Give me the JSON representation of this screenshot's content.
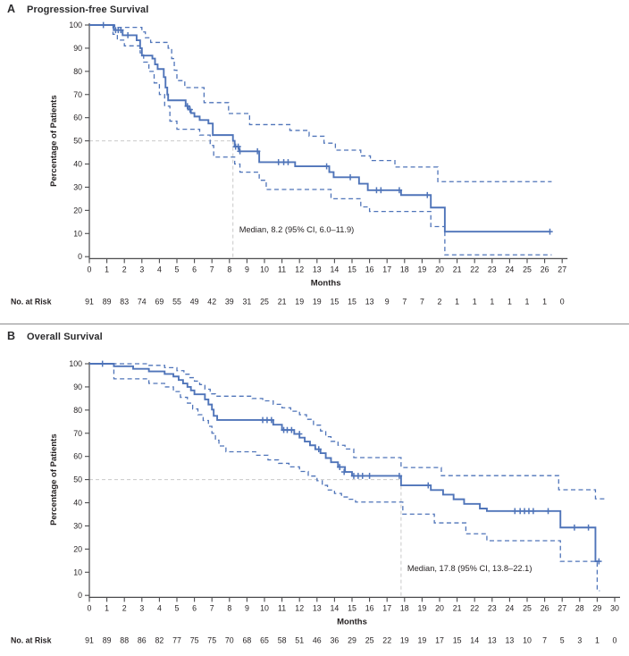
{
  "figure": {
    "panels": [
      {
        "panel_label": "A",
        "title": "Progression-free Survival",
        "y_axis_label": "Percentage of Patients",
        "x_axis_label": "Months",
        "median_annotation": "Median, 8.2 (95% CI, 6.0–11.9)",
        "no_at_risk_label": "No. at Risk"
      },
      {
        "panel_label": "B",
        "title": "Overall Survival",
        "y_axis_label": "Percentage of Patients",
        "x_axis_label": "Months",
        "median_annotation": "Median, 17.8 (95% CI, 13.8–22.1)",
        "no_at_risk_label": "No. at Risk"
      }
    ],
    "colors": {
      "curve": "#4f74b9",
      "reference_line": "#c9c9c9",
      "axis": "#4b4b4d",
      "text": "#231f20",
      "annotation_text": "#3a3a3c"
    }
  },
  "chart_data": [
    {
      "type": "line",
      "subtype": "kaplan-meier-step",
      "title": "Progression-free Survival",
      "xlabel": "Months",
      "ylabel": "Percentage of Patients",
      "xlim": [
        0,
        27
      ],
      "ylim": [
        0,
        100
      ],
      "xticks": [
        0,
        1,
        2,
        3,
        4,
        5,
        6,
        7,
        8,
        9,
        10,
        11,
        12,
        13,
        14,
        15,
        16,
        17,
        18,
        19,
        20,
        21,
        22,
        23,
        24,
        25,
        26,
        27
      ],
      "yticks": [
        0,
        10,
        20,
        30,
        40,
        50,
        60,
        70,
        80,
        90,
        100
      ],
      "median_months": 8.2,
      "ci_95": [
        6.0,
        11.9
      ],
      "reference_lines": {
        "horizontal_y": 50,
        "vertical_x": 8.2
      },
      "legend_position": "none",
      "grid": false,
      "series": [
        {
          "name": "PFS estimate",
          "style": "solid",
          "steps": [
            [
              0,
              100
            ],
            [
              1.4,
              97.8
            ],
            [
              1.9,
              95.6
            ],
            [
              2.7,
              93.4
            ],
            [
              2.9,
              90
            ],
            [
              3.0,
              86.8
            ],
            [
              3.6,
              85.5
            ],
            [
              3.75,
              83
            ],
            [
              3.9,
              81
            ],
            [
              4.25,
              77.5
            ],
            [
              4.35,
              73
            ],
            [
              4.45,
              70
            ],
            [
              4.5,
              67.5
            ],
            [
              5.5,
              65
            ],
            [
              5.65,
              63.5
            ],
            [
              5.8,
              62
            ],
            [
              6.0,
              60.5
            ],
            [
              6.3,
              59
            ],
            [
              6.8,
              57.5
            ],
            [
              7.05,
              52.5
            ],
            [
              8.2,
              50
            ],
            [
              8.3,
              47.5
            ],
            [
              8.55,
              45.5
            ],
            [
              9.7,
              40.8
            ],
            [
              11.75,
              39
            ],
            [
              13.7,
              36.5
            ],
            [
              13.95,
              34.3
            ],
            [
              15.4,
              31.5
            ],
            [
              15.9,
              28.7
            ],
            [
              17.8,
              26.6
            ],
            [
              19.5,
              21.2
            ],
            [
              20.3,
              10.8
            ],
            [
              26.35,
              10.8
            ]
          ]
        },
        {
          "name": "95% CI upper",
          "style": "dashed",
          "steps": [
            [
              0,
              100
            ],
            [
              1.45,
              99
            ],
            [
              3.0,
              97
            ],
            [
              3.2,
              94.5
            ],
            [
              3.5,
              92.5
            ],
            [
              4.5,
              90
            ],
            [
              4.7,
              85.5
            ],
            [
              4.85,
              80.5
            ],
            [
              5.0,
              76
            ],
            [
              5.45,
              73
            ],
            [
              6.55,
              66.5
            ],
            [
              7.95,
              61.8
            ],
            [
              9.15,
              57
            ],
            [
              11.45,
              54.5
            ],
            [
              12.55,
              52
            ],
            [
              13.4,
              49
            ],
            [
              14.05,
              46
            ],
            [
              15.5,
              43.5
            ],
            [
              16.05,
              41.5
            ],
            [
              17.45,
              38.7
            ],
            [
              19.9,
              32.4
            ],
            [
              26.4,
              32.4
            ]
          ]
        },
        {
          "name": "95% CI lower",
          "style": "dashed",
          "steps": [
            [
              0,
              100
            ],
            [
              1.35,
              96
            ],
            [
              1.6,
              93.5
            ],
            [
              2.0,
              91
            ],
            [
              2.9,
              88
            ],
            [
              3.1,
              84
            ],
            [
              3.4,
              80
            ],
            [
              3.7,
              75
            ],
            [
              4.0,
              70
            ],
            [
              4.3,
              65
            ],
            [
              4.6,
              58.5
            ],
            [
              5.0,
              55
            ],
            [
              6.3,
              52.5
            ],
            [
              6.9,
              48
            ],
            [
              7.1,
              43
            ],
            [
              8.3,
              40
            ],
            [
              8.6,
              36.5
            ],
            [
              9.7,
              33
            ],
            [
              10.1,
              29
            ],
            [
              13.8,
              25
            ],
            [
              15.5,
              21.5
            ],
            [
              16.0,
              19.5
            ],
            [
              19.5,
              13
            ],
            [
              20.3,
              0.8
            ],
            [
              26.4,
              0.8
            ]
          ]
        }
      ],
      "censor_marks": [
        [
          0.8,
          100
        ],
        [
          1.5,
          97.8
        ],
        [
          1.65,
          97.8
        ],
        [
          1.8,
          97.8
        ],
        [
          2.2,
          95.6
        ],
        [
          5.6,
          65
        ],
        [
          5.75,
          63.5
        ],
        [
          8.35,
          47.5
        ],
        [
          8.5,
          47.5
        ],
        [
          8.6,
          45.5
        ],
        [
          9.6,
          45.5
        ],
        [
          10.8,
          40.8
        ],
        [
          11.1,
          40.8
        ],
        [
          11.35,
          40.8
        ],
        [
          13.55,
          39
        ],
        [
          14.9,
          34.3
        ],
        [
          16.4,
          28.7
        ],
        [
          16.65,
          28.7
        ],
        [
          17.7,
          28.7
        ],
        [
          19.3,
          26.6
        ],
        [
          26.3,
          10.8
        ]
      ],
      "no_at_risk": [
        91,
        89,
        83,
        74,
        69,
        55,
        49,
        42,
        39,
        31,
        25,
        21,
        19,
        19,
        15,
        15,
        13,
        9,
        7,
        7,
        2,
        1,
        1,
        1,
        1,
        1,
        1,
        0
      ]
    },
    {
      "type": "line",
      "subtype": "kaplan-meier-step",
      "title": "Overall Survival",
      "xlabel": "Months",
      "ylabel": "Percentage of Patients",
      "xlim": [
        0,
        30
      ],
      "ylim": [
        0,
        100
      ],
      "xticks": [
        0,
        1,
        2,
        3,
        4,
        5,
        6,
        7,
        8,
        9,
        10,
        11,
        12,
        13,
        14,
        15,
        16,
        17,
        18,
        19,
        20,
        21,
        22,
        23,
        24,
        25,
        26,
        27,
        28,
        29,
        30
      ],
      "yticks": [
        0,
        10,
        20,
        30,
        40,
        50,
        60,
        70,
        80,
        90,
        100
      ],
      "median_months": 17.8,
      "ci_95": [
        13.8,
        22.1
      ],
      "reference_lines": {
        "horizontal_y": 50,
        "vertical_x": 17.8
      },
      "legend_position": "none",
      "grid": false,
      "series": [
        {
          "name": "OS estimate",
          "style": "solid",
          "steps": [
            [
              0,
              100
            ],
            [
              1.4,
              98.9
            ],
            [
              2.5,
              97.8
            ],
            [
              3.4,
              96.7
            ],
            [
              4.3,
              95.6
            ],
            [
              4.8,
              94.5
            ],
            [
              5.1,
              93
            ],
            [
              5.35,
              91.5
            ],
            [
              5.6,
              90
            ],
            [
              5.8,
              88.5
            ],
            [
              6.0,
              86.8
            ],
            [
              6.6,
              84.6
            ],
            [
              6.8,
              82.4
            ],
            [
              7.0,
              80.2
            ],
            [
              7.1,
              77.5
            ],
            [
              7.3,
              75.7
            ],
            [
              10.5,
              73.7
            ],
            [
              11.0,
              71.4
            ],
            [
              11.7,
              69.7
            ],
            [
              12.0,
              68.1
            ],
            [
              12.3,
              66.4
            ],
            [
              12.6,
              64.8
            ],
            [
              12.9,
              63.1
            ],
            [
              13.2,
              61.4
            ],
            [
              13.5,
              59.3
            ],
            [
              13.8,
              57.5
            ],
            [
              14.2,
              55.4
            ],
            [
              14.6,
              53.3
            ],
            [
              15.0,
              51.6
            ],
            [
              17.8,
              47.5
            ],
            [
              19.5,
              45.5
            ],
            [
              20.2,
              43.5
            ],
            [
              20.8,
              41.5
            ],
            [
              21.4,
              39.5
            ],
            [
              22.3,
              37.5
            ],
            [
              22.7,
              36.4
            ],
            [
              26.9,
              29.3
            ],
            [
              28.9,
              14.7
            ],
            [
              29.15,
              14.7
            ]
          ]
        },
        {
          "name": "95% CI upper",
          "style": "dashed",
          "steps": [
            [
              0,
              100
            ],
            [
              3.4,
              99.3
            ],
            [
              4.3,
              98.3
            ],
            [
              5.0,
              97
            ],
            [
              5.4,
              95.5
            ],
            [
              5.7,
              94
            ],
            [
              6.0,
              92.5
            ],
            [
              6.3,
              91
            ],
            [
              6.6,
              89
            ],
            [
              6.9,
              87
            ],
            [
              7.2,
              86
            ],
            [
              9.3,
              85
            ],
            [
              9.9,
              84
            ],
            [
              10.5,
              82.5
            ],
            [
              11.0,
              81
            ],
            [
              11.5,
              79.5
            ],
            [
              12.0,
              78
            ],
            [
              12.4,
              76
            ],
            [
              12.8,
              73.5
            ],
            [
              13.2,
              71
            ],
            [
              13.5,
              68.5
            ],
            [
              13.8,
              66.5
            ],
            [
              14.2,
              64.8
            ],
            [
              14.6,
              63.2
            ],
            [
              15.1,
              59.5
            ],
            [
              17.8,
              55.2
            ],
            [
              20.1,
              51.7
            ],
            [
              26.8,
              45.6
            ],
            [
              28.9,
              41.7
            ],
            [
              29.5,
              41.7
            ]
          ]
        },
        {
          "name": "95% CI lower",
          "style": "dashed",
          "steps": [
            [
              0,
              100
            ],
            [
              1.4,
              93.5
            ],
            [
              3.4,
              91.5
            ],
            [
              4.3,
              90
            ],
            [
              4.8,
              88
            ],
            [
              5.2,
              85.5
            ],
            [
              5.6,
              83
            ],
            [
              5.9,
              80.5
            ],
            [
              6.2,
              78
            ],
            [
              6.5,
              75.5
            ],
            [
              6.8,
              73
            ],
            [
              7.0,
              70
            ],
            [
              7.2,
              67
            ],
            [
              7.4,
              64.5
            ],
            [
              7.8,
              62
            ],
            [
              9.5,
              60.5
            ],
            [
              10.2,
              58.5
            ],
            [
              10.8,
              57
            ],
            [
              11.4,
              55.5
            ],
            [
              12.0,
              53.5
            ],
            [
              12.5,
              51.5
            ],
            [
              13.0,
              49.5
            ],
            [
              13.3,
              47.5
            ],
            [
              13.6,
              45.5
            ],
            [
              14.0,
              44
            ],
            [
              14.4,
              42.5
            ],
            [
              14.8,
              41.5
            ],
            [
              15.2,
              40.3
            ],
            [
              17.9,
              35.1
            ],
            [
              19.7,
              31.3
            ],
            [
              21.5,
              26.6
            ],
            [
              22.7,
              23.6
            ],
            [
              26.9,
              14.7
            ],
            [
              29.0,
              2.0
            ],
            [
              29.15,
              2.0
            ]
          ]
        }
      ],
      "censor_marks": [
        [
          0.75,
          100
        ],
        [
          9.9,
          75.7
        ],
        [
          10.15,
          75.7
        ],
        [
          10.4,
          75.7
        ],
        [
          11.1,
          71.4
        ],
        [
          11.3,
          71.4
        ],
        [
          11.55,
          71.4
        ],
        [
          12.0,
          69.7
        ],
        [
          13.1,
          63.1
        ],
        [
          14.3,
          55.4
        ],
        [
          14.55,
          53.3
        ],
        [
          15.1,
          51.6
        ],
        [
          15.35,
          51.6
        ],
        [
          15.6,
          51.6
        ],
        [
          16.0,
          51.6
        ],
        [
          17.7,
          51.6
        ],
        [
          19.35,
          47.5
        ],
        [
          24.3,
          36.4
        ],
        [
          24.6,
          36.4
        ],
        [
          24.85,
          36.4
        ],
        [
          25.1,
          36.4
        ],
        [
          25.35,
          36.4
        ],
        [
          26.2,
          36.4
        ],
        [
          27.7,
          29.3
        ],
        [
          28.5,
          29.3
        ],
        [
          29.1,
          14.7
        ]
      ],
      "no_at_risk": [
        91,
        89,
        88,
        86,
        82,
        77,
        75,
        75,
        70,
        68,
        65,
        58,
        51,
        46,
        36,
        29,
        25,
        22,
        19,
        19,
        17,
        15,
        14,
        13,
        13,
        10,
        7,
        5,
        3,
        1,
        0
      ]
    }
  ]
}
